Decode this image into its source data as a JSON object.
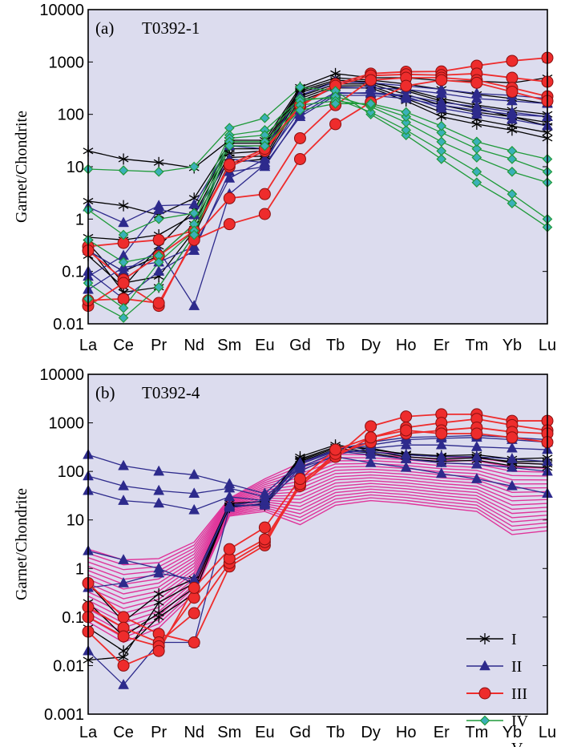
{
  "chart_data": [
    {
      "type": "line",
      "panel_label": "(a)",
      "title": "T0392-1",
      "ylabel": "Garnet/Chondrite",
      "xlabel": "",
      "yscale": "log",
      "ylim": [
        0.01,
        10000
      ],
      "yticks": [
        "0.01",
        "0.1",
        "1",
        "10",
        "100",
        "1000",
        "10000"
      ],
      "categories": [
        "La",
        "Ce",
        "Pr",
        "Nd",
        "Sm",
        "Eu",
        "Gd",
        "Tb",
        "Dy",
        "Ho",
        "Er",
        "Tm",
        "Yb",
        "Lu"
      ],
      "series": [
        {
          "group": "I",
          "values": [
            20,
            14,
            12,
            9.5,
            32,
            32,
            330,
            600,
            500,
            500,
            440,
            430,
            400,
            500
          ]
        },
        {
          "group": "I",
          "values": [
            2.2,
            1.8,
            1.2,
            2.5,
            28,
            28,
            300,
            500,
            450,
            380,
            300,
            240,
            200,
            160
          ]
        },
        {
          "group": "I",
          "values": [
            0.45,
            0.4,
            0.5,
            1.2,
            22,
            22,
            260,
            420,
            400,
            300,
            200,
            150,
            120,
            100
          ]
        },
        {
          "group": "I",
          "values": [
            0.25,
            0.1,
            0.2,
            0.8,
            18,
            20,
            220,
            380,
            380,
            240,
            150,
            110,
            90,
            70
          ]
        },
        {
          "group": "I",
          "values": [
            0.35,
            0.06,
            0.08,
            0.6,
            15,
            16,
            200,
            350,
            350,
            200,
            110,
            80,
            60,
            45
          ]
        },
        {
          "group": "I",
          "values": [
            0.3,
            0.04,
            0.05,
            0.5,
            12,
            14,
            180,
            320,
            320,
            180,
            90,
            65,
            50,
            35
          ]
        },
        {
          "group": "I",
          "values": [
            0.2,
            0.05,
            0.3,
            1.5,
            25,
            25,
            280,
            450,
            420,
            280,
            180,
            130,
            90,
            60
          ]
        },
        {
          "group": "II",
          "values": [
            1.7,
            0.85,
            1.8,
            1.9,
            25,
            22,
            230,
            420,
            400,
            350,
            300,
            250,
            230,
            200
          ]
        },
        {
          "group": "II",
          "values": [
            0.08,
            0.2,
            1.5,
            1.2,
            14,
            12,
            160,
            330,
            320,
            300,
            250,
            200,
            180,
            160
          ]
        },
        {
          "group": "II",
          "values": [
            0.25,
            0.1,
            0.25,
            0.022,
            3,
            11,
            90,
            230,
            230,
            200,
            150,
            120,
            100,
            90
          ]
        },
        {
          "group": "II",
          "values": [
            0.045,
            0.12,
            0.15,
            0.3,
            6,
            14,
            120,
            260,
            250,
            220,
            130,
            100,
            80,
            60
          ]
        },
        {
          "group": "II",
          "values": [
            0.1,
            0.03,
            0.1,
            0.25,
            8,
            10,
            100,
            250,
            260,
            230,
            170,
            140,
            110,
            90
          ]
        },
        {
          "group": "III",
          "values": [
            0.3,
            0.35,
            0.4,
            0.6,
            10,
            20,
            140,
            380,
            600,
            650,
            660,
            850,
            1050,
            1200
          ]
        },
        {
          "group": "III",
          "values": [
            0.25,
            0.07,
            0.2,
            0.6,
            11,
            22,
            150,
            350,
            550,
            580,
            560,
            600,
            500,
            420
          ]
        },
        {
          "group": "III",
          "values": [
            0.022,
            0.06,
            0.022,
            0.45,
            2.5,
            3,
            35,
            150,
            450,
            500,
            500,
            450,
            320,
            220
          ]
        },
        {
          "group": "III",
          "values": [
            0.028,
            0.03,
            0.025,
            0.4,
            0.8,
            1.25,
            14,
            65,
            170,
            350,
            450,
            400,
            270,
            180
          ]
        },
        {
          "group": "IV",
          "values": [
            9,
            8.5,
            8,
            10,
            55,
            85,
            330,
            280,
            100,
            40,
            14,
            5,
            2,
            0.7
          ]
        },
        {
          "group": "IV",
          "values": [
            1.5,
            0.5,
            1,
            1.3,
            40,
            50,
            200,
            200,
            110,
            50,
            20,
            8,
            3,
            1
          ]
        },
        {
          "group": "IV",
          "values": [
            0.4,
            0.15,
            0.2,
            0.8,
            35,
            40,
            180,
            220,
            140,
            70,
            30,
            15,
            8,
            5
          ]
        },
        {
          "group": "IV",
          "values": [
            0.06,
            0.02,
            0.15,
            0.6,
            30,
            30,
            150,
            180,
            150,
            90,
            45,
            22,
            14,
            8
          ]
        },
        {
          "group": "IV",
          "values": [
            0.03,
            0.013,
            0.05,
            0.5,
            25,
            25,
            120,
            160,
            160,
            110,
            60,
            30,
            20,
            14
          ]
        }
      ]
    },
    {
      "type": "line",
      "panel_label": "(b)",
      "title": "T0392-4",
      "ylabel": "Garnet/Chondrite",
      "xlabel": "",
      "yscale": "log",
      "ylim": [
        0.001,
        10000
      ],
      "yticks": [
        "0.001",
        "0.01",
        "0.1",
        "1",
        "10",
        "100",
        "1000",
        "10000"
      ],
      "categories": [
        "La",
        "Ce",
        "Pr",
        "Nd",
        "Sm",
        "Eu",
        "Gd",
        "Tb",
        "Dy",
        "Ho",
        "Er",
        "Tm",
        "Yb",
        "Lu"
      ],
      "series": [
        {
          "group": "I",
          "values": [
            0.013,
            0.015,
            0.2,
            0.5,
            18,
            22,
            200,
            350,
            280,
            230,
            210,
            220,
            180,
            190
          ]
        },
        {
          "group": "I",
          "values": [
            0.06,
            0.02,
            0.1,
            0.3,
            20,
            20,
            170,
            300,
            260,
            200,
            180,
            190,
            160,
            160
          ]
        },
        {
          "group": "I",
          "values": [
            0.5,
            0.08,
            0.3,
            0.6,
            22,
            24,
            180,
            320,
            300,
            220,
            200,
            200,
            150,
            140
          ]
        },
        {
          "group": "I",
          "values": [
            0.2,
            0.04,
            0.12,
            0.4,
            19,
            21,
            160,
            280,
            240,
            180,
            160,
            170,
            130,
            120
          ]
        },
        {
          "group": "II",
          "values": [
            220,
            130,
            100,
            85,
            55,
            35,
            150,
            280,
            400,
            500,
            520,
            550,
            500,
            450
          ]
        },
        {
          "group": "II",
          "values": [
            80,
            50,
            40,
            35,
            45,
            30,
            120,
            250,
            350,
            450,
            480,
            500,
            450,
            400
          ]
        },
        {
          "group": "II",
          "values": [
            40,
            25,
            22,
            16,
            30,
            25,
            100,
            220,
            300,
            350,
            350,
            320,
            300,
            280
          ]
        },
        {
          "group": "II",
          "values": [
            2.3,
            1.5,
            1,
            0.5,
            20,
            20,
            120,
            200,
            150,
            120,
            90,
            70,
            50,
            35
          ]
        },
        {
          "group": "II",
          "values": [
            0.02,
            0.004,
            0.03,
            0.03,
            18,
            22,
            140,
            260,
            220,
            180,
            150,
            140,
            120,
            100
          ]
        },
        {
          "group": "II",
          "values": [
            0.4,
            0.5,
            0.8,
            0.6,
            20,
            25,
            150,
            270,
            250,
            220,
            200,
            200,
            180,
            160
          ]
        },
        {
          "group": "III",
          "values": [
            0.5,
            0.1,
            0.045,
            0.03,
            1.1,
            3,
            60,
            200,
            850,
            1350,
            1500,
            1500,
            1100,
            1100
          ]
        },
        {
          "group": "III",
          "values": [
            0.16,
            0.06,
            0.03,
            0.12,
            1.3,
            3.5,
            50,
            200,
            500,
            800,
            1000,
            1200,
            900,
            700
          ]
        },
        {
          "group": "III",
          "values": [
            0.1,
            0.04,
            0.025,
            0.25,
            1.6,
            4,
            55,
            230,
            400,
            600,
            700,
            800,
            650,
            600
          ]
        },
        {
          "group": "III",
          "values": [
            0.05,
            0.01,
            0.02,
            0.4,
            2.5,
            7,
            70,
            280,
            500,
            700,
            600,
            600,
            500,
            400
          ]
        }
      ],
      "pink_series_count": 18
    }
  ],
  "legend": {
    "items": [
      {
        "label": "I",
        "color": "#000000",
        "marker": "star"
      },
      {
        "label": "II",
        "color": "#2d2a8c",
        "marker": "triangle"
      },
      {
        "label": "III",
        "color": "#ee2c2c",
        "marker": "circle"
      },
      {
        "label": "IV",
        "color": "#1f9a3a",
        "marker": "diamond"
      },
      {
        "label": "V",
        "color": "#e0349a",
        "marker": "none"
      }
    ]
  },
  "colors": {
    "plot_bg": "#dcdcee",
    "I": "#000000",
    "II": "#2d2a8c",
    "III": "#ee2c2c",
    "IV": "#1f9a3a",
    "V": "#e0349a",
    "III_fill": "#ee2c2c",
    "IV_fill": "#3bb0b8"
  }
}
